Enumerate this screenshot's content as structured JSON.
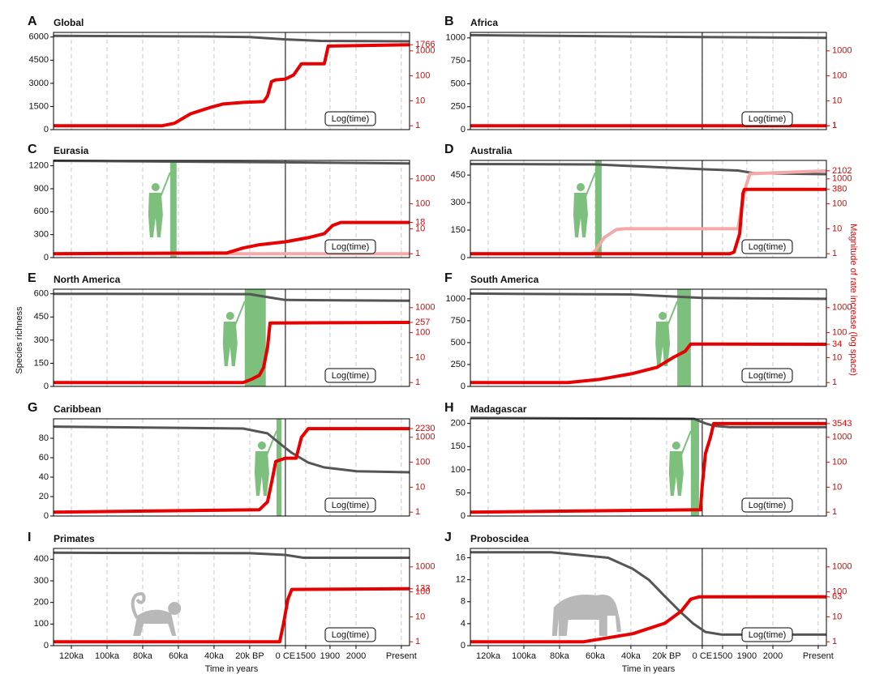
{
  "y_label": "Species richness",
  "y2_label": "Magnitude of rate increase (log space)",
  "x_label": "Time in years",
  "time_note": "Log(time)",
  "xlim": [
    -0.5,
    9.48
  ],
  "xticks": [
    {
      "value": 0,
      "label": "120ka"
    },
    {
      "value": 1,
      "label": "100ka"
    },
    {
      "value": 2,
      "label": "80ka"
    },
    {
      "value": 3,
      "label": "60ka"
    },
    {
      "value": 4,
      "label": "40ka"
    },
    {
      "value": 5,
      "label": "20k BP"
    },
    {
      "value": 6,
      "label": "0 CE"
    },
    {
      "value": 6.57,
      "label": "1500"
    },
    {
      "value": 7.25,
      "label": "1900"
    },
    {
      "value": 7.98,
      "label": "2000"
    },
    {
      "value": 9.25,
      "label": "Present"
    }
  ],
  "divider_x": 6,
  "y2lim": [
    0.7,
    5500
  ],
  "y2ticks": [
    1,
    10,
    100,
    1000
  ],
  "y2log": true,
  "chart_data": [
    {
      "type": "line",
      "letter": "A",
      "title": "Global",
      "ylim": [
        0,
        6300
      ],
      "yticks": [
        0,
        1500,
        3000,
        4500,
        6000
      ],
      "series": [
        {
          "color": "#555555",
          "x": [
            -0.5,
            4,
            5,
            6,
            7,
            9.48
          ],
          "values": [
            6080,
            6030,
            6000,
            5850,
            5750,
            5720
          ]
        },
        {
          "color": "#e60000",
          "axis": "y2",
          "end_label": true,
          "x": [
            -0.5,
            2.55,
            2.89,
            3.34,
            3.91,
            4.25,
            4.82,
            5.39,
            5.5,
            5.61,
            5.73,
            6,
            6.23,
            6.45,
            7.09,
            7.2,
            9.48
          ],
          "values": [
            1,
            1,
            1.25,
            3,
            5.5,
            7.4,
            8.6,
            9.3,
            15.6,
            59,
            69,
            74,
            108,
            304,
            304,
            1560,
            1766
          ]
        }
      ]
    },
    {
      "type": "line",
      "letter": "B",
      "title": "Africa",
      "ylim": [
        0,
        1060
      ],
      "yticks": [
        0,
        250,
        500,
        750,
        1000
      ],
      "series": [
        {
          "color": "#555555",
          "x": [
            -0.5,
            6,
            9.48
          ],
          "values": [
            1030,
            1010,
            1000
          ]
        },
        {
          "color": "#e60000",
          "axis": "y2",
          "end_label": true,
          "x": [
            -0.5,
            9.48
          ],
          "values": [
            1,
            1
          ]
        }
      ]
    },
    {
      "type": "line",
      "letter": "C",
      "title": "Eurasia",
      "ylim": [
        0,
        1270
      ],
      "yticks": [
        0,
        300,
        600,
        900,
        1200
      ],
      "arrival": [
        2.77,
        2.95
      ],
      "silhouette": "human",
      "series": [
        {
          "color": "#555555",
          "x": [
            -0.5,
            6,
            9.48
          ],
          "values": [
            1265,
            1245,
            1230
          ]
        },
        {
          "color": "#f4a8a8",
          "axis": "y2",
          "x": [
            -0.5,
            9.48
          ],
          "values": [
            1,
            1
          ]
        },
        {
          "color": "#e60000",
          "axis": "y2",
          "end_label": true,
          "x": [
            -0.5,
            4.36,
            4.82,
            5.27,
            6,
            6.64,
            7.09,
            7.32,
            7.55,
            9.48
          ],
          "values": [
            1,
            1.08,
            1.7,
            2.3,
            3,
            4.4,
            6.4,
            13.5,
            18,
            18
          ]
        }
      ]
    },
    {
      "type": "line",
      "letter": "D",
      "title": "Australia",
      "ylim": [
        0,
        530
      ],
      "yticks": [
        0,
        150,
        300,
        450
      ],
      "arrival": [
        3.0,
        3.18
      ],
      "silhouette": "human",
      "series": [
        {
          "color": "#555555",
          "x": [
            -0.5,
            3.02,
            4.5,
            6,
            7,
            7.45,
            9.48
          ],
          "values": [
            510,
            508,
            495,
            482,
            475,
            460,
            455
          ]
        },
        {
          "color": "#f4a8a8",
          "axis": "y2",
          "end_label": true,
          "x": [
            -0.5,
            2.91,
            3.02,
            3.25,
            3.59,
            3.82,
            7,
            7.11,
            7.23,
            7.34,
            9.48
          ],
          "values": [
            1,
            1,
            1.45,
            4.4,
            9.3,
            10,
            10,
            85,
            550,
            1600,
            2102
          ]
        },
        {
          "color": "#e60000",
          "axis": "y2",
          "end_label": true,
          "x": [
            -0.5,
            6.77,
            6.89,
            7.05,
            7.14,
            7.18,
            9.48
          ],
          "values": [
            1,
            1,
            1.16,
            6.4,
            262,
            380,
            380
          ]
        }
      ]
    },
    {
      "type": "line",
      "letter": "E",
      "title": "North America",
      "ylim": [
        0,
        630
      ],
      "yticks": [
        0,
        150,
        300,
        450,
        600
      ],
      "arrival": [
        4.86,
        5.45
      ],
      "silhouette": "human",
      "series": [
        {
          "color": "#555555",
          "x": [
            -0.5,
            5,
            5.6,
            6,
            9.48
          ],
          "values": [
            600,
            598,
            575,
            560,
            555
          ]
        },
        {
          "color": "#e60000",
          "axis": "y2",
          "end_label": true,
          "x": [
            -0.5,
            4.82,
            5.05,
            5.27,
            5.39,
            5.5,
            5.57,
            9.48
          ],
          "values": [
            1,
            1,
            1.35,
            1.95,
            4.1,
            26,
            243,
            257
          ]
        }
      ]
    },
    {
      "type": "line",
      "letter": "F",
      "title": "South America",
      "ylim": [
        0,
        1110
      ],
      "yticks": [
        0,
        250,
        500,
        750,
        1000
      ],
      "arrival": [
        5.3,
        5.68
      ],
      "silhouette": "human",
      "series": [
        {
          "color": "#555555",
          "x": [
            -0.5,
            4,
            6,
            9.48
          ],
          "values": [
            1060,
            1050,
            1010,
            1000
          ]
        },
        {
          "color": "#e60000",
          "axis": "y2",
          "end_label": true,
          "x": [
            -0.5,
            2.23,
            3.14,
            4.05,
            4.73,
            5.18,
            5.52,
            5.68,
            9.48
          ],
          "values": [
            1,
            1,
            1.35,
            2.3,
            4.1,
            10,
            18,
            35,
            34
          ]
        }
      ]
    },
    {
      "type": "line",
      "letter": "G",
      "title": "Caribbean",
      "ylim": [
        0,
        100
      ],
      "yticks": [
        0,
        20,
        40,
        60,
        80
      ],
      "arrival": [
        5.75,
        5.89
      ],
      "silhouette": "human",
      "series": [
        {
          "color": "#555555",
          "x": [
            -0.5,
            4.82,
            5.5,
            5.73,
            6,
            6.18,
            6.64,
            7.09,
            8,
            9.48
          ],
          "values": [
            92,
            90,
            85,
            78,
            70,
            65,
            55,
            50,
            46,
            45
          ]
        },
        {
          "color": "#e60000",
          "axis": "y2",
          "end_label": true,
          "x": [
            -0.5,
            5.27,
            5.5,
            5.64,
            5.73,
            6,
            6.3,
            6.45,
            6.64,
            9.48
          ],
          "values": [
            1,
            1.25,
            2.6,
            24,
            108,
            145,
            145,
            1000,
            2230,
            2230
          ]
        }
      ]
    },
    {
      "type": "line",
      "letter": "H",
      "title": "Madagascar",
      "ylim": [
        0,
        210
      ],
      "yticks": [
        0,
        50,
        100,
        150,
        200
      ],
      "arrival": [
        5.68,
        5.91
      ],
      "silhouette": "human",
      "series": [
        {
          "color": "#555555",
          "x": [
            -0.5,
            5.77,
            6.09,
            6.32,
            6.77,
            9.48
          ],
          "values": [
            212,
            210,
            200,
            195,
            192,
            192
          ]
        },
        {
          "color": "#e60000",
          "axis": "y2",
          "end_label": true,
          "x": [
            -0.5,
            5.95,
            6,
            6.09,
            6.23,
            6.32,
            9.48
          ],
          "values": [
            1,
            1.25,
            11.6,
            226,
            1000,
            3543,
            3543
          ]
        }
      ]
    },
    {
      "type": "line",
      "letter": "I",
      "title": "Primates",
      "ylim": [
        0,
        450
      ],
      "yticks": [
        0,
        100,
        200,
        300,
        400
      ],
      "silhouette": "monkey",
      "series": [
        {
          "color": "#555555",
          "x": [
            -0.5,
            5,
            6,
            6.5,
            9.48
          ],
          "values": [
            430,
            428,
            420,
            407,
            407
          ]
        },
        {
          "color": "#e60000",
          "axis": "y2",
          "end_label": true,
          "x": [
            -0.5,
            5.84,
            5.95,
            6.07,
            6.18,
            9.48
          ],
          "values": [
            1,
            1,
            5.5,
            51,
            125,
            133
          ]
        }
      ]
    },
    {
      "type": "line",
      "letter": "J",
      "title": "Proboscidea",
      "ylim": [
        0,
        17.7
      ],
      "yticks": [
        0,
        4,
        8,
        12,
        16
      ],
      "silhouette": "elephant",
      "series": [
        {
          "color": "#555555",
          "x": [
            -0.5,
            1.77,
            3.36,
            4.05,
            4.5,
            4.95,
            5.41,
            5.75,
            6.09,
            6.55,
            9.48
          ],
          "values": [
            17,
            17,
            16,
            14,
            12,
            9,
            6,
            4,
            2.5,
            2,
            2
          ]
        },
        {
          "color": "#e60000",
          "axis": "y2",
          "end_label": true,
          "x": [
            -0.5,
            2.68,
            4.05,
            4.95,
            5.41,
            5.68,
            5.91,
            9.48
          ],
          "values": [
            1,
            1,
            2.1,
            5.5,
            16.8,
            51,
            63,
            63
          ]
        }
      ]
    }
  ]
}
